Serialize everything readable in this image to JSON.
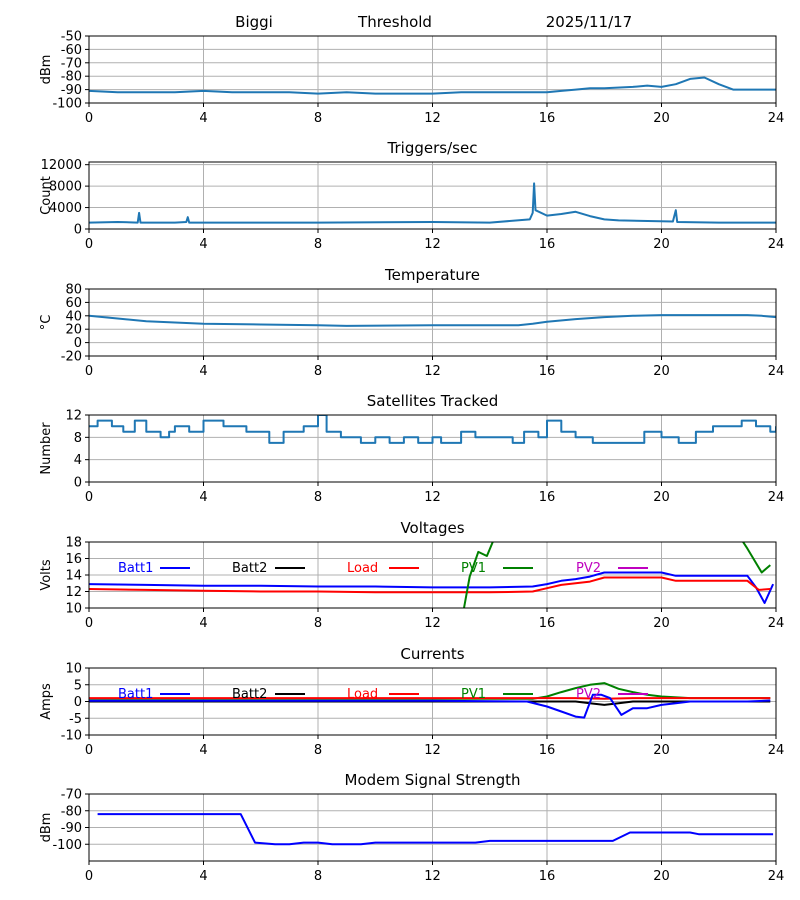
{
  "header": {
    "station": "Biggi",
    "mode": "Threshold",
    "date": "2025/11/17"
  },
  "colors": {
    "default": "#1f77b4",
    "blue": "#0000ff",
    "black": "#000000",
    "red": "#ff0000",
    "green": "#008000",
    "magenta": "#bf00bf",
    "grid": "#b0b0b0"
  },
  "chart_data": [
    {
      "type": "line",
      "title": "",
      "ylabel": "dBm",
      "xlim": [
        0,
        24
      ],
      "xticks": [
        "0",
        "4",
        "8",
        "12",
        "16",
        "20",
        "24"
      ],
      "ylim": [
        -100,
        -50
      ],
      "yticks": [
        "-100",
        "-90",
        "-80",
        "-70",
        "-60",
        "-50"
      ],
      "series": [
        {
          "name": "threshold",
          "color": "#1f77b4",
          "x": [
            0,
            1,
            2,
            3,
            4,
            5,
            6,
            7,
            8,
            9,
            10,
            11,
            12,
            13,
            14,
            15,
            16,
            16.5,
            17,
            17.5,
            18,
            19,
            19.5,
            20,
            20.5,
            21,
            21.5,
            22,
            22.5,
            23,
            24
          ],
          "y": [
            -91,
            -92,
            -92,
            -92,
            -91,
            -92,
            -92,
            -92,
            -93,
            -92,
            -93,
            -93,
            -93,
            -92,
            -92,
            -92,
            -92,
            -91,
            -90,
            -89,
            -89,
            -88,
            -87,
            -88,
            -86,
            -82,
            -81,
            -86,
            -90,
            -90,
            -90
          ]
        }
      ]
    },
    {
      "type": "line",
      "title": "Triggers/sec",
      "ylabel": "Count",
      "xlim": [
        0,
        24
      ],
      "xticks": [
        "0",
        "4",
        "8",
        "12",
        "16",
        "20",
        "24"
      ],
      "ylim": [
        0,
        12500
      ],
      "yticks": [
        "0",
        "4000",
        "8000",
        "12000"
      ],
      "series": [
        {
          "name": "triggers",
          "color": "#1f77b4",
          "x": [
            0,
            1,
            1.7,
            1.75,
            1.8,
            3,
            3.4,
            3.45,
            3.5,
            5,
            8,
            12,
            14,
            15.4,
            15.5,
            15.55,
            15.6,
            16,
            16.5,
            17,
            17.5,
            18,
            18.5,
            20.4,
            20.5,
            20.55,
            22,
            24
          ],
          "y": [
            1200,
            1300,
            1200,
            3000,
            1200,
            1200,
            1300,
            2200,
            1200,
            1200,
            1200,
            1300,
            1200,
            1800,
            3000,
            8500,
            3500,
            2500,
            2800,
            3200,
            2400,
            1800,
            1600,
            1400,
            3500,
            1300,
            1200,
            1200
          ]
        }
      ]
    },
    {
      "type": "line",
      "title": "Temperature",
      "ylabel": "°C",
      "xlim": [
        0,
        24
      ],
      "xticks": [
        "0",
        "4",
        "8",
        "12",
        "16",
        "20",
        "24"
      ],
      "ylim": [
        -20,
        80
      ],
      "yticks": [
        "-20",
        "0",
        "20",
        "40",
        "60",
        "80"
      ],
      "series": [
        {
          "name": "temperature",
          "color": "#1f77b4",
          "x": [
            0,
            1,
            2,
            3,
            4,
            6,
            8,
            9,
            12,
            13,
            14,
            15,
            15.5,
            16,
            17,
            18,
            19,
            20,
            21,
            22,
            23,
            23.5,
            24
          ],
          "y": [
            40,
            36,
            32,
            30,
            28,
            27,
            26,
            25,
            26,
            26,
            26,
            26,
            28,
            31,
            35,
            38,
            40,
            41,
            41,
            41,
            41,
            40,
            38
          ]
        }
      ]
    },
    {
      "type": "line",
      "title": "Satellites Tracked",
      "ylabel": "Number",
      "xlim": [
        0,
        24
      ],
      "xticks": [
        "0",
        "4",
        "8",
        "12",
        "16",
        "20",
        "24"
      ],
      "ylim": [
        0,
        12
      ],
      "yticks": [
        "0",
        "4",
        "8",
        "12"
      ],
      "step": true,
      "series": [
        {
          "name": "satellites",
          "color": "#1f77b4",
          "x": [
            0,
            0.3,
            0.8,
            1.2,
            1.6,
            2,
            2.5,
            2.8,
            3,
            3.5,
            4,
            4.7,
            5.5,
            6.3,
            6.8,
            7.5,
            8,
            8.3,
            8.8,
            9.5,
            10,
            10.5,
            11,
            11.5,
            12,
            12.3,
            13,
            13.5,
            14,
            14.8,
            15.2,
            15.7,
            16,
            16.5,
            17,
            17.6,
            18,
            18.5,
            19.4,
            20,
            20.6,
            21.2,
            21.8,
            22.3,
            22.8,
            23.3,
            23.8,
            24
          ],
          "y": [
            10,
            11,
            10,
            9,
            11,
            9,
            8,
            9,
            10,
            9,
            11,
            10,
            9,
            7,
            9,
            10,
            12,
            9,
            8,
            7,
            8,
            7,
            8,
            7,
            8,
            7,
            9,
            8,
            8,
            7,
            9,
            8,
            11,
            9,
            8,
            7,
            7,
            7,
            9,
            8,
            7,
            9,
            10,
            10,
            11,
            10,
            9,
            10
          ]
        }
      ]
    },
    {
      "type": "line",
      "title": "Voltages",
      "ylabel": "Volts",
      "xlim": [
        0,
        24
      ],
      "xticks": [
        "0",
        "4",
        "8",
        "12",
        "16",
        "20",
        "24"
      ],
      "ylim": [
        10,
        18
      ],
      "yticks": [
        "10",
        "12",
        "14",
        "16",
        "18"
      ],
      "legend": [
        "Batt1",
        "Batt2",
        "Load",
        "PV1",
        "PV2"
      ],
      "series": [
        {
          "name": "Batt1",
          "color": "#0000ff",
          "x": [
            0,
            2,
            4,
            6,
            8,
            10,
            12,
            14,
            15.5,
            16,
            16.5,
            17,
            17.5,
            18,
            18.5,
            20,
            20.5,
            21,
            22,
            23,
            23.3,
            23.6,
            23.9
          ],
          "y": [
            12.9,
            12.8,
            12.7,
            12.7,
            12.6,
            12.6,
            12.5,
            12.5,
            12.6,
            12.9,
            13.3,
            13.5,
            13.8,
            14.3,
            14.3,
            14.3,
            13.9,
            13.9,
            13.9,
            13.9,
            12.5,
            10.6,
            12.9
          ]
        },
        {
          "name": "Load",
          "color": "#ff0000",
          "x": [
            0,
            2,
            4,
            6,
            8,
            10,
            12,
            14,
            15.5,
            16,
            16.5,
            17,
            17.5,
            18,
            20,
            20.5,
            21,
            22,
            23,
            23.4,
            23.8
          ],
          "y": [
            12.3,
            12.2,
            12.1,
            12.0,
            12.0,
            11.9,
            11.9,
            11.9,
            12.0,
            12.4,
            12.8,
            13.0,
            13.2,
            13.7,
            13.7,
            13.3,
            13.3,
            13.3,
            13.3,
            12.2,
            12.3
          ]
        },
        {
          "name": "PV1",
          "color": "#008000",
          "x": [
            13.1,
            13.3,
            13.6,
            13.9,
            14.2
          ],
          "y": [
            10,
            13.8,
            16.8,
            16.3,
            18.8
          ],
          "x2": [
            22.7,
            23.0,
            23.5,
            23.8
          ],
          "y2": [
            18.8,
            17.2,
            14.3,
            15.2
          ]
        }
      ]
    },
    {
      "type": "line",
      "title": "Currents",
      "ylabel": "Amps",
      "xlim": [
        0,
        24
      ],
      "xticks": [
        "0",
        "4",
        "8",
        "12",
        "16",
        "20",
        "24"
      ],
      "ylim": [
        -10,
        10
      ],
      "yticks": [
        "-10",
        "-5",
        "0",
        "5",
        "10"
      ],
      "legend": [
        "Batt1",
        "Batt2",
        "Load",
        "PV1",
        "PV2"
      ],
      "series": [
        {
          "name": "PV1",
          "color": "#008000",
          "x": [
            0,
            15.5,
            16,
            16.5,
            17,
            17.5,
            18,
            18.5,
            19,
            19.5,
            20,
            21,
            22,
            23,
            23.8
          ],
          "y": [
            0.8,
            0.8,
            1.5,
            2.8,
            4.0,
            5.0,
            5.5,
            3.8,
            2.8,
            2.0,
            1.5,
            1.0,
            1.0,
            1.0,
            1.0
          ]
        },
        {
          "name": "Load",
          "color": "#ff0000",
          "x": [
            0,
            4,
            8,
            12,
            15.5,
            16,
            17,
            18,
            19,
            20,
            22,
            23.8
          ],
          "y": [
            1.0,
            1.0,
            1.0,
            1.0,
            1.0,
            1.0,
            1.0,
            0.8,
            1.0,
            1.0,
            1.0,
            1.0
          ]
        },
        {
          "name": "Batt2",
          "color": "#000000",
          "x": [
            0,
            15.5,
            16,
            17,
            17.5,
            18,
            18.5,
            19,
            20,
            21,
            22,
            23,
            23.8
          ],
          "y": [
            0,
            0,
            0,
            0,
            -0.5,
            -1.0,
            -0.5,
            0,
            0,
            0,
            0,
            0,
            0
          ]
        },
        {
          "name": "Batt1",
          "color": "#0000ff",
          "x": [
            0,
            4,
            8,
            12,
            15.3,
            16,
            16.5,
            17,
            17.3,
            17.6,
            17.9,
            18.2,
            18.6,
            19,
            19.5,
            20,
            20.5,
            21,
            22,
            23,
            23.8
          ],
          "y": [
            0.2,
            0.2,
            0.2,
            0.2,
            0.0,
            -1.5,
            -3.0,
            -4.5,
            -4.8,
            2.0,
            2.0,
            1.0,
            -4.0,
            -2.0,
            -2.0,
            -1.0,
            -0.5,
            0.0,
            0.0,
            0.0,
            0.3
          ]
        }
      ]
    },
    {
      "type": "line",
      "title": "Modem Signal Strength",
      "ylabel": "dBm",
      "xlim": [
        0,
        24
      ],
      "xticks": [
        "0",
        "4",
        "8",
        "12",
        "16",
        "20",
        "24"
      ],
      "ylim": [
        -110,
        -70
      ],
      "yticks": [
        "-100",
        "-90",
        "-80",
        "-70"
      ],
      "series": [
        {
          "name": "modem",
          "color": "#0000ff",
          "x": [
            0.3,
            5.3,
            5.8,
            6.5,
            7,
            7.5,
            8,
            8.5,
            9,
            9.5,
            10,
            11,
            12,
            13,
            13.5,
            14,
            15,
            16,
            17,
            18,
            18.3,
            18.9,
            20,
            21,
            21.3,
            22,
            23,
            23.9
          ],
          "y": [
            -82,
            -82,
            -99,
            -100,
            -100,
            -99,
            -99,
            -100,
            -100,
            -100,
            -99,
            -99,
            -99,
            -99,
            -99,
            -98,
            -98,
            -98,
            -98,
            -98,
            -98,
            -93,
            -93,
            -93,
            -94,
            -94,
            -94,
            -94
          ]
        }
      ]
    }
  ]
}
